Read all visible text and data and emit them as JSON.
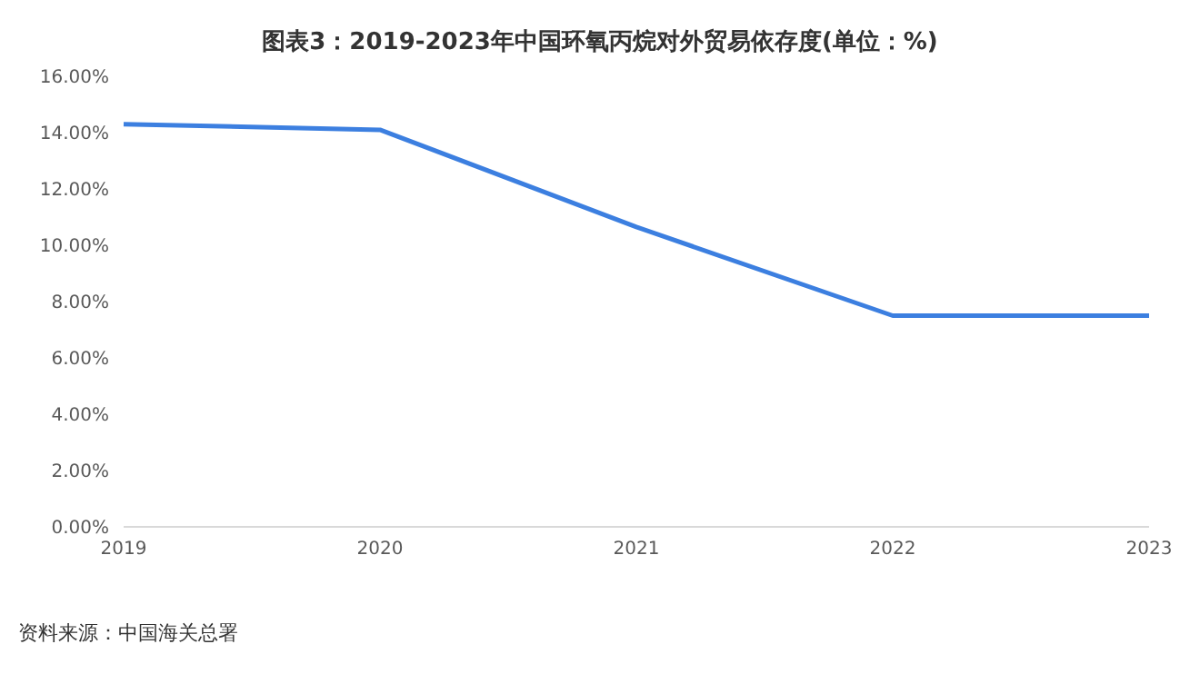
{
  "chart_data": {
    "type": "line",
    "title": "图表3：2019-2023年中国环氧丙烷对外贸易依存度(单位：%)",
    "categories": [
      "2019",
      "2020",
      "2021",
      "2022",
      "2023"
    ],
    "series": [
      {
        "color": "#3c7fe0",
        "values": [
          14.3,
          14.1,
          10.65,
          7.5,
          7.5
        ]
      }
    ],
    "ylim": [
      0,
      16
    ],
    "yticks": [
      {
        "value": 0,
        "label": "0.00%"
      },
      {
        "value": 2,
        "label": "2.00%"
      },
      {
        "value": 4,
        "label": "4.00%"
      },
      {
        "value": 6,
        "label": "6.00%"
      },
      {
        "value": 8,
        "label": "8.00%"
      },
      {
        "value": 10,
        "label": "10.00%"
      },
      {
        "value": 12,
        "label": "12.00%"
      },
      {
        "value": 14,
        "label": "14.00%"
      },
      {
        "value": 16,
        "label": "16.00%"
      }
    ],
    "grid": false,
    "legend": false,
    "marker": "none",
    "line_style": "solid",
    "annotations": [
      "资料来源：中国海关总署"
    ]
  }
}
